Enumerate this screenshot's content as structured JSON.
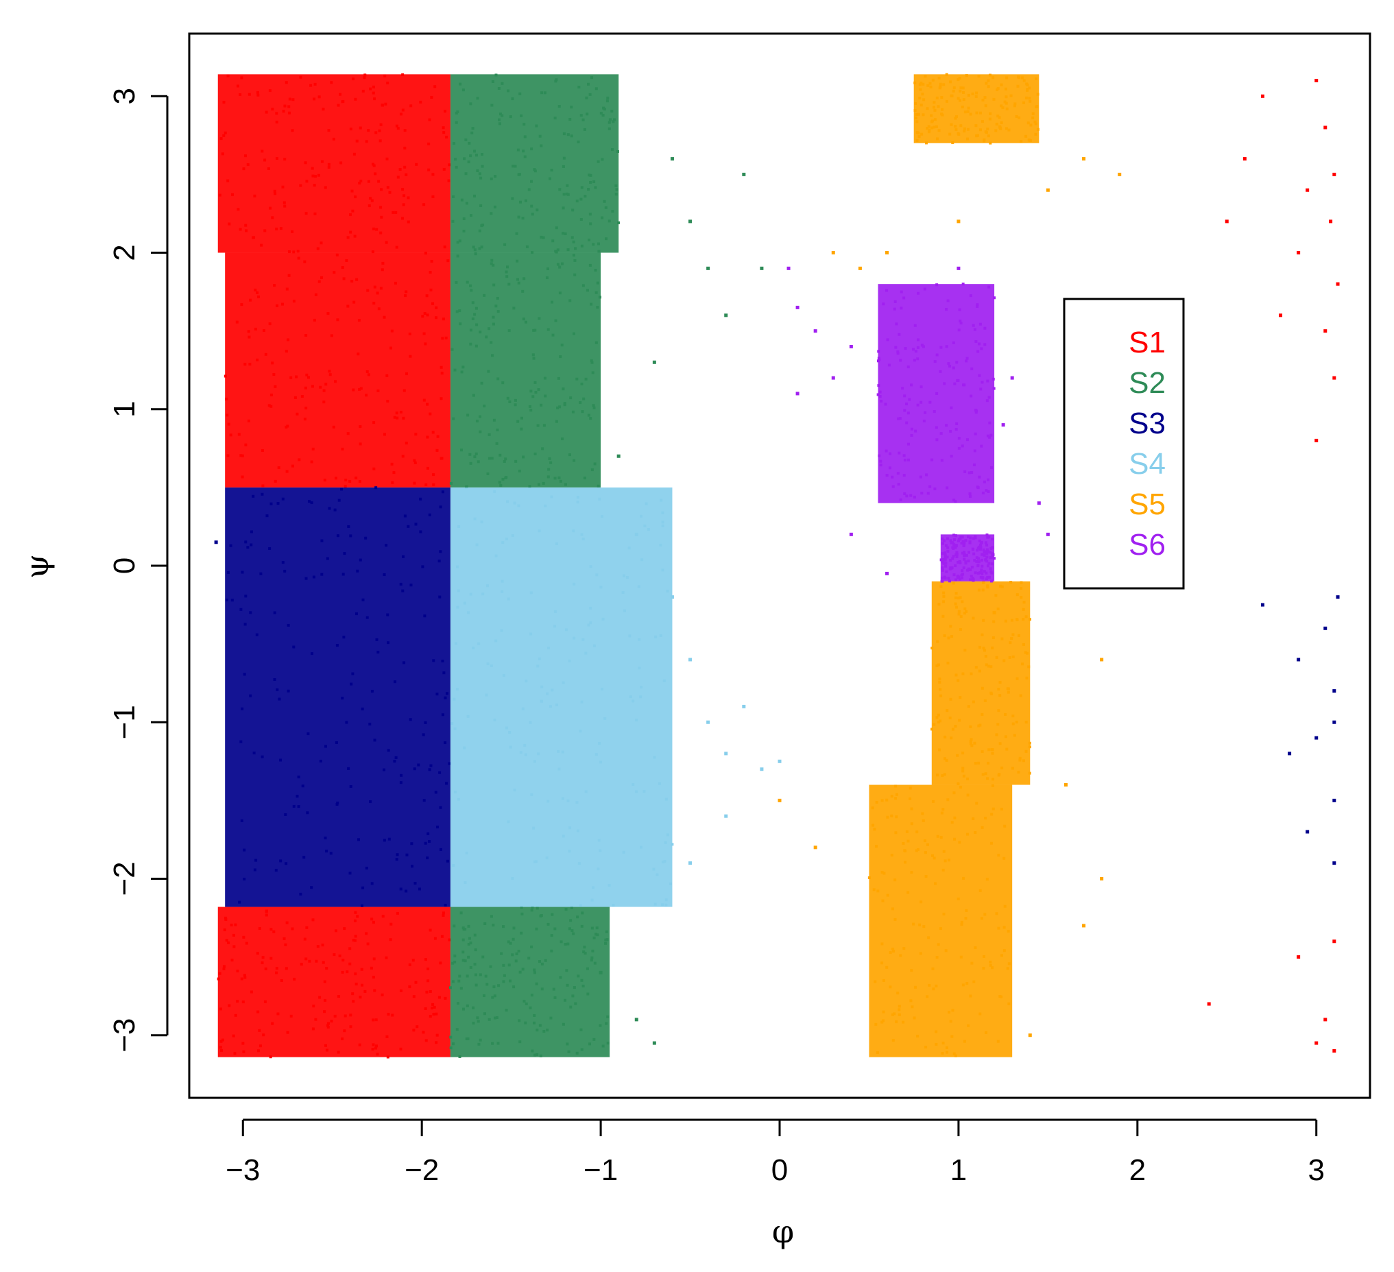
{
  "chart_data": {
    "type": "scatter",
    "title": "",
    "xlabel": "φ",
    "ylabel": "ψ",
    "xlim": [
      -3.3,
      3.3
    ],
    "ylim": [
      -3.4,
      3.4
    ],
    "xticks": [
      -3,
      -2,
      -1,
      0,
      1,
      2,
      3
    ],
    "yticks": [
      -3,
      -2,
      -1,
      0,
      1,
      2,
      3
    ],
    "xtick_labels": [
      "−3",
      "−2",
      "−1",
      "0",
      "1",
      "2",
      "3"
    ],
    "ytick_labels": [
      "−3",
      "−2",
      "−1",
      "0",
      "1",
      "2",
      "3"
    ],
    "grid": false,
    "legend_position": "top-right",
    "series": [
      {
        "name": "S1",
        "color": "#FF0000",
        "dense_regions": [
          {
            "x": [
              -3.14,
              -1.84
            ],
            "y": [
              2.0,
              3.14
            ]
          },
          {
            "x": [
              -3.1,
              -1.84
            ],
            "y": [
              0.5,
              2.0
            ]
          },
          {
            "x": [
              -3.14,
              -1.84
            ],
            "y": [
              -3.14,
              -2.18
            ]
          }
        ],
        "points": [
          [
            3.0,
            3.1
          ],
          [
            3.05,
            2.8
          ],
          [
            3.1,
            2.5
          ],
          [
            3.08,
            2.2
          ],
          [
            3.12,
            1.8
          ],
          [
            3.05,
            1.5
          ],
          [
            2.95,
            2.4
          ],
          [
            2.6,
            2.6
          ],
          [
            2.5,
            2.2
          ],
          [
            2.8,
            1.6
          ],
          [
            3.1,
            1.2
          ],
          [
            3.0,
            0.8
          ],
          [
            2.7,
            3.0
          ],
          [
            2.9,
            2.0
          ],
          [
            3.1,
            -2.4
          ],
          [
            3.05,
            -2.9
          ],
          [
            3.1,
            -3.1
          ],
          [
            2.9,
            -2.5
          ],
          [
            2.4,
            -2.8
          ],
          [
            3.0,
            -3.05
          ]
        ]
      },
      {
        "name": "S2",
        "color": "#2E8B57",
        "dense_regions": [
          {
            "x": [
              -1.84,
              -0.9
            ],
            "y": [
              2.0,
              3.14
            ]
          },
          {
            "x": [
              -1.84,
              -1.0
            ],
            "y": [
              0.5,
              2.0
            ]
          },
          {
            "x": [
              -1.84,
              -0.95
            ],
            "y": [
              -3.14,
              -2.18
            ]
          }
        ],
        "points": [
          [
            -0.6,
            2.6
          ],
          [
            -0.5,
            2.2
          ],
          [
            -0.4,
            1.9
          ],
          [
            -0.3,
            1.6
          ],
          [
            -0.2,
            2.5
          ],
          [
            -0.1,
            1.9
          ],
          [
            -0.7,
            1.3
          ],
          [
            -0.9,
            0.7
          ],
          [
            -0.8,
            -2.9
          ],
          [
            -0.7,
            -3.05
          ],
          [
            -1.0,
            -2.6
          ]
        ]
      },
      {
        "name": "S3",
        "color": "#00008B",
        "dense_regions": [
          {
            "x": [
              -3.1,
              -1.84
            ],
            "y": [
              -2.18,
              0.5
            ]
          }
        ],
        "points": [
          [
            3.05,
            -0.4
          ],
          [
            3.1,
            -0.8
          ],
          [
            3.0,
            -1.1
          ],
          [
            3.1,
            -1.5
          ],
          [
            2.95,
            -1.7
          ],
          [
            3.1,
            -1.9
          ],
          [
            2.85,
            -1.2
          ],
          [
            2.9,
            -0.6
          ],
          [
            3.12,
            -0.2
          ],
          [
            2.7,
            -0.25
          ],
          [
            -3.15,
            0.15
          ],
          [
            3.1,
            -1.0
          ]
        ]
      },
      {
        "name": "S4",
        "color": "#87CEEB",
        "dense_regions": [
          {
            "x": [
              -1.84,
              -0.6
            ],
            "y": [
              -2.18,
              0.5
            ]
          }
        ],
        "points": [
          [
            -0.5,
            -0.6
          ],
          [
            -0.4,
            -1.0
          ],
          [
            -0.3,
            -1.2
          ],
          [
            -0.2,
            -0.9
          ],
          [
            -0.1,
            -1.3
          ],
          [
            0.0,
            -1.25
          ],
          [
            -0.3,
            -1.6
          ],
          [
            -0.6,
            -0.2
          ],
          [
            -0.8,
            0.2
          ],
          [
            -0.5,
            -1.9
          ]
        ]
      },
      {
        "name": "S5",
        "color": "#FFA500",
        "dense_regions": [
          {
            "x": [
              0.5,
              1.3
            ],
            "y": [
              -3.14,
              -1.4
            ]
          },
          {
            "x": [
              0.85,
              1.4
            ],
            "y": [
              -1.4,
              -0.1
            ]
          },
          {
            "x": [
              0.75,
              1.45
            ],
            "y": [
              2.7,
              3.14
            ]
          }
        ],
        "points": [
          [
            1.5,
            2.4
          ],
          [
            1.7,
            2.6
          ],
          [
            1.9,
            2.5
          ],
          [
            0.3,
            2.0
          ],
          [
            0.6,
            2.0
          ],
          [
            0.45,
            1.9
          ],
          [
            1.8,
            -0.6
          ],
          [
            1.6,
            -1.4
          ],
          [
            1.8,
            -2.0
          ],
          [
            1.7,
            -2.3
          ],
          [
            0.0,
            -1.5
          ],
          [
            0.2,
            -1.8
          ],
          [
            1.4,
            -3.0
          ],
          [
            1.2,
            -0.3
          ],
          [
            1.0,
            2.2
          ]
        ]
      },
      {
        "name": "S6",
        "color": "#A020F0",
        "dense_regions": [
          {
            "x": [
              0.55,
              1.2
            ],
            "y": [
              0.4,
              1.8
            ]
          },
          {
            "x": [
              0.9,
              1.2
            ],
            "y": [
              -0.1,
              0.2
            ]
          }
        ],
        "points": [
          [
            0.05,
            1.9
          ],
          [
            0.1,
            1.65
          ],
          [
            0.2,
            1.5
          ],
          [
            0.4,
            1.4
          ],
          [
            0.3,
            1.2
          ],
          [
            0.1,
            1.1
          ],
          [
            1.25,
            0.9
          ],
          [
            1.3,
            1.2
          ],
          [
            1.45,
            0.4
          ],
          [
            1.5,
            0.2
          ],
          [
            0.4,
            0.2
          ],
          [
            0.6,
            -0.05
          ],
          [
            1.0,
            1.9
          ]
        ]
      }
    ]
  }
}
